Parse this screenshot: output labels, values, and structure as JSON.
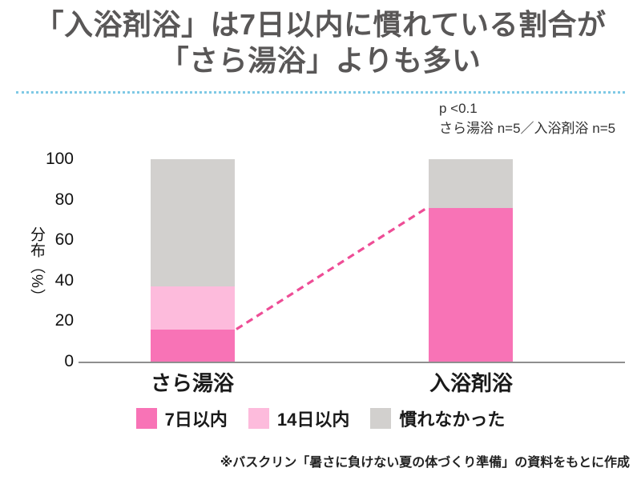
{
  "title": {
    "line1": "「入浴剤浴」は7日以内に慣れている割合が",
    "line2": "「さら湯浴」よりも多い"
  },
  "stats": {
    "p_value": "p <0.1",
    "sample_sizes": "さら湯浴 n=5／入浴剤浴 n=5"
  },
  "chart_data": {
    "type": "bar",
    "stacked": true,
    "categories": [
      "さら湯浴",
      "入浴剤浴"
    ],
    "series": [
      {
        "name": "7日以内",
        "values": [
          16,
          76
        ],
        "color": "#F873B6"
      },
      {
        "name": "14日以内",
        "values": [
          21,
          0
        ],
        "color": "#FDBBDC"
      },
      {
        "name": "慣れなかった",
        "values": [
          63,
          24
        ],
        "color": "#D2D0CE"
      }
    ],
    "ylabel": "分布（%）",
    "yticks": [
      100,
      80,
      60,
      40,
      20,
      0
    ],
    "ylim": [
      0,
      100
    ],
    "grid": false,
    "legend_position": "bottom",
    "connector": {
      "series": "7日以内",
      "from_category": "さら湯浴",
      "from_value": 16,
      "to_category": "入浴剤浴",
      "to_value": 76,
      "style": "dashed",
      "color": "#EE4D96"
    }
  },
  "footer": {
    "source_note": "※バスクリン「暑さに負けない夏の体づくり準備」の資料をもとに作成"
  },
  "colors": {
    "title_text": "#595757",
    "divider_blue": "#7FC9E5",
    "baseline_gray": "#8F8F8F"
  }
}
